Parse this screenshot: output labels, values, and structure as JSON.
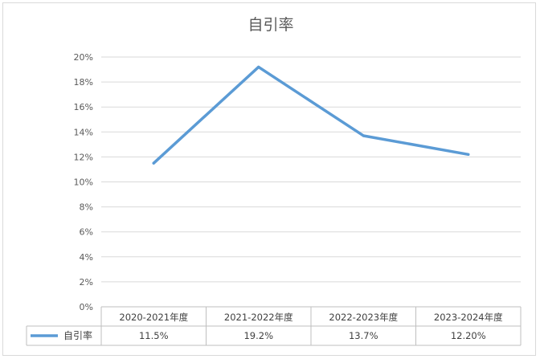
{
  "chart_data": {
    "type": "line",
    "title": "自引率",
    "categories": [
      "2020-2021年度",
      "2021-2022年度",
      "2022-2023年度",
      "2023-2024年度"
    ],
    "series": [
      {
        "name": "自引率",
        "values": [
          11.5,
          19.2,
          13.7,
          12.2
        ],
        "labels": [
          "11.5%",
          "19.2%",
          "13.7%",
          "12.20%"
        ],
        "color": "#5b9bd5"
      }
    ],
    "ylim": [
      0,
      20
    ],
    "yticks": [
      "0%",
      "2%",
      "4%",
      "6%",
      "8%",
      "10%",
      "12%",
      "14%",
      "16%",
      "18%",
      "20%"
    ],
    "grid": true,
    "legend": "bottom-left data table"
  }
}
